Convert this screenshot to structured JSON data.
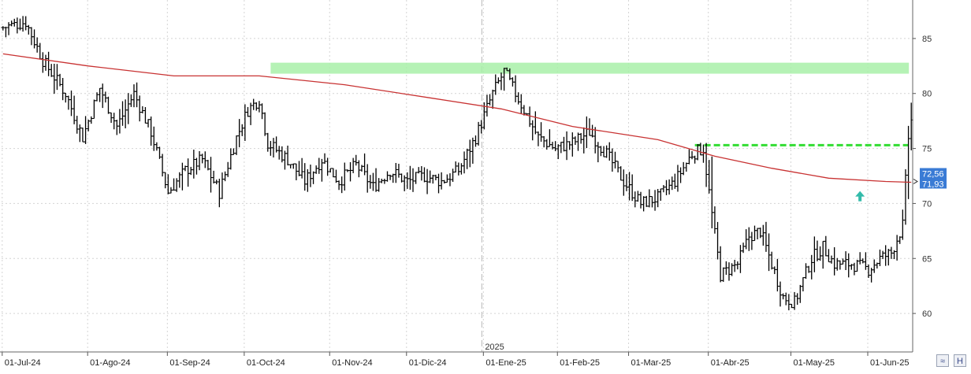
{
  "chart_data": {
    "type": "bar",
    "subtype": "ohlc",
    "title": "",
    "xlabel": "",
    "ylabel": "",
    "ylim": [
      56.5,
      88.5
    ],
    "y_ticks": [
      60,
      65,
      70,
      75,
      80,
      85
    ],
    "x_ticks": [
      "01-Jul-24",
      "01-Ago-24",
      "01-Sep-24",
      "01-Oct-24",
      "01-Nov-24",
      "01-Dic-24",
      "01-Ene-25",
      "01-Feb-25",
      "01-Mar-25",
      "01-Abr-25",
      "01-May-25",
      "01-Jun-25"
    ],
    "year_divider_label": "2025",
    "grid": true,
    "anchors": [
      [
        0,
        86.0
      ],
      [
        8,
        86.5
      ],
      [
        14,
        83.0
      ],
      [
        22,
        80.0
      ],
      [
        28,
        76.0
      ],
      [
        34,
        80.5
      ],
      [
        40,
        77.0
      ],
      [
        46,
        80.0
      ],
      [
        52,
        76.5
      ],
      [
        58,
        71.0
      ],
      [
        64,
        73.0
      ],
      [
        70,
        74.0
      ],
      [
        76,
        71.0
      ],
      [
        82,
        76.0
      ],
      [
        86,
        78.5
      ],
      [
        90,
        79.5
      ],
      [
        93,
        75.5
      ],
      [
        100,
        74.0
      ],
      [
        106,
        72.0
      ],
      [
        112,
        74.0
      ],
      [
        118,
        72.0
      ],
      [
        124,
        73.5
      ],
      [
        130,
        71.5
      ],
      [
        136,
        73.0
      ],
      [
        142,
        72.0
      ],
      [
        148,
        72.5
      ],
      [
        154,
        72.0
      ],
      [
        160,
        73.0
      ],
      [
        166,
        76.0
      ],
      [
        172,
        80.0
      ],
      [
        176,
        82.0
      ],
      [
        182,
        79.0
      ],
      [
        188,
        76.0
      ],
      [
        194,
        75.0
      ],
      [
        200,
        75.5
      ],
      [
        206,
        76.5
      ],
      [
        212,
        74.5
      ],
      [
        218,
        72.0
      ],
      [
        224,
        70.0
      ],
      [
        230,
        70.5
      ],
      [
        236,
        72.0
      ],
      [
        242,
        74.5
      ],
      [
        246,
        75.0
      ],
      [
        249,
        69.0
      ],
      [
        252,
        63.5
      ],
      [
        258,
        64.5
      ],
      [
        262,
        67.0
      ],
      [
        266,
        67.5
      ],
      [
        270,
        64.5
      ],
      [
        274,
        61.5
      ],
      [
        278,
        61.0
      ],
      [
        284,
        65.0
      ],
      [
        288,
        66.0
      ],
      [
        292,
        64.5
      ],
      [
        298,
        64.5
      ],
      [
        304,
        64.0
      ],
      [
        308,
        65.0
      ],
      [
        312,
        65.5
      ],
      [
        316,
        68.0
      ],
      [
        318,
        76.0
      ],
      [
        319,
        77.5
      ]
    ],
    "series": [
      {
        "name": "",
        "type": "line",
        "color": "#c83232",
        "x": [
          0,
          30,
          60,
          90,
          120,
          150,
          175,
          200,
          230,
          250,
          270,
          290,
          310,
          319
        ],
        "values": [
          83.6,
          82.5,
          81.6,
          81.6,
          80.8,
          79.6,
          78.6,
          77.0,
          75.8,
          74.3,
          73.2,
          72.3,
          72.0,
          71.93
        ]
      }
    ],
    "annotations": [
      {
        "type": "band",
        "x_start": 94,
        "x_end": 319,
        "y_low": 81.8,
        "y_high": 82.8,
        "color": "#a8f0a8"
      },
      {
        "type": "dashed-line",
        "x_start": 243,
        "x_end": 319,
        "y": 75.3,
        "color": "#33dd33"
      },
      {
        "type": "arrow-up",
        "x": 301,
        "y": 70.2,
        "color": "#33bbaa"
      }
    ],
    "last_price_labels": [
      "72,56",
      "71,93"
    ],
    "label_color": "#3a7bd5"
  },
  "toolbar": {
    "icons": [
      "wave-icon",
      "chart-h-icon"
    ]
  }
}
